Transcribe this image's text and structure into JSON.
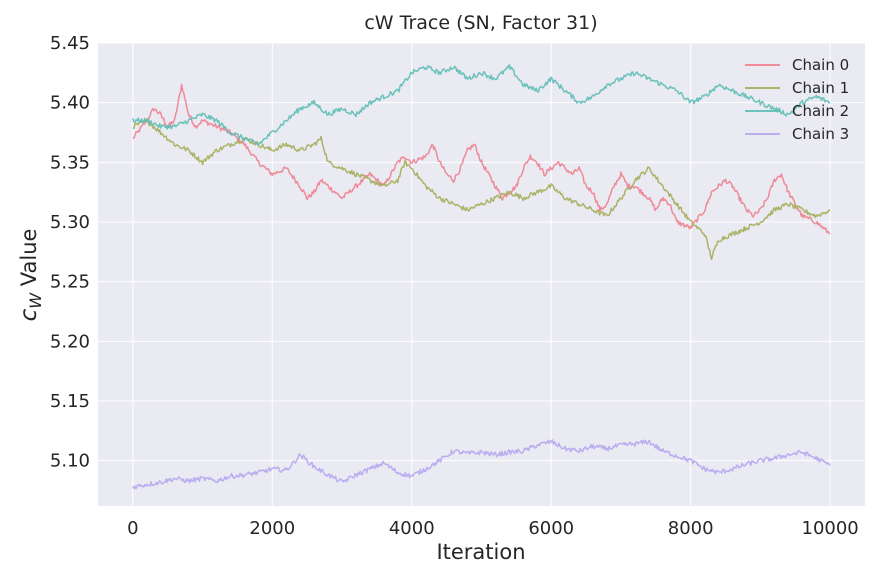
{
  "chart_data": {
    "type": "line",
    "title": "cW Trace (SN, Factor 31)",
    "xlabel": "Iteration",
    "ylabel_main": "c",
    "ylabel_sub": "W",
    "ylabel_rest": " Value",
    "xlim": [
      -500,
      10500
    ],
    "ylim": [
      5.062,
      5.45
    ],
    "xticks": [
      0,
      2000,
      4000,
      6000,
      8000,
      10000
    ],
    "xtick_labels": [
      "0",
      "2000",
      "4000",
      "6000",
      "8000",
      "10000"
    ],
    "yticks": [
      5.1,
      5.15,
      5.2,
      5.25,
      5.3,
      5.35,
      5.4,
      5.45
    ],
    "ytick_labels": [
      "5.10",
      "5.15",
      "5.20",
      "5.25",
      "5.30",
      "5.35",
      "5.40",
      "5.45"
    ],
    "grid": true,
    "legend_position": "top-right",
    "colors": {
      "plot_background": "#eaeaf2",
      "grid": "#ffffff",
      "text": "#262626"
    },
    "series": [
      {
        "name": "Chain 0",
        "color": "#f07f8f",
        "x": [
          0,
          200,
          300,
          400,
          500,
          600,
          700,
          800,
          900,
          1000,
          1200,
          1400,
          1600,
          1800,
          1900,
          2000,
          2200,
          2400,
          2500,
          2600,
          2700,
          2800,
          2900,
          3000,
          3200,
          3400,
          3600,
          3800,
          3900,
          4000,
          4200,
          4300,
          4400,
          4500,
          4600,
          4700,
          4800,
          4900,
          5000,
          5100,
          5200,
          5300,
          5400,
          5500,
          5600,
          5700,
          5800,
          5900,
          6000,
          6100,
          6200,
          6300,
          6400,
          6500,
          6600,
          6700,
          6800,
          6900,
          7000,
          7100,
          7200,
          7300,
          7400,
          7500,
          7600,
          7700,
          7800,
          8000,
          8200,
          8300,
          8400,
          8500,
          8600,
          8700,
          8800,
          8900,
          9000,
          9100,
          9200,
          9300,
          9400,
          9500,
          9600,
          9800,
          10000
        ],
        "y": [
          5.37,
          5.385,
          5.395,
          5.39,
          5.38,
          5.385,
          5.415,
          5.39,
          5.38,
          5.385,
          5.38,
          5.375,
          5.365,
          5.35,
          5.345,
          5.34,
          5.345,
          5.33,
          5.32,
          5.325,
          5.335,
          5.33,
          5.325,
          5.32,
          5.33,
          5.34,
          5.33,
          5.35,
          5.355,
          5.35,
          5.355,
          5.365,
          5.35,
          5.34,
          5.335,
          5.345,
          5.36,
          5.365,
          5.35,
          5.34,
          5.33,
          5.32,
          5.325,
          5.33,
          5.345,
          5.355,
          5.35,
          5.34,
          5.345,
          5.35,
          5.345,
          5.34,
          5.345,
          5.33,
          5.325,
          5.31,
          5.315,
          5.33,
          5.34,
          5.33,
          5.33,
          5.325,
          5.32,
          5.31,
          5.32,
          5.315,
          5.3,
          5.295,
          5.31,
          5.325,
          5.33,
          5.335,
          5.33,
          5.32,
          5.31,
          5.305,
          5.31,
          5.32,
          5.335,
          5.34,
          5.325,
          5.315,
          5.305,
          5.3,
          5.29
        ]
      },
      {
        "name": "Chain 1",
        "color": "#a5ad5a",
        "x": [
          0,
          200,
          400,
          600,
          800,
          1000,
          1200,
          1400,
          1600,
          1800,
          2000,
          2200,
          2400,
          2600,
          2700,
          2800,
          3000,
          3200,
          3400,
          3600,
          3800,
          3900,
          4000,
          4200,
          4400,
          4600,
          4800,
          5000,
          5200,
          5400,
          5600,
          5800,
          6000,
          6200,
          6400,
          6600,
          6800,
          7000,
          7200,
          7400,
          7600,
          7800,
          8000,
          8200,
          8300,
          8400,
          8600,
          8800,
          9000,
          9200,
          9400,
          9600,
          9800,
          10000
        ],
        "y": [
          5.38,
          5.385,
          5.375,
          5.365,
          5.36,
          5.35,
          5.36,
          5.365,
          5.37,
          5.365,
          5.36,
          5.365,
          5.36,
          5.365,
          5.37,
          5.35,
          5.345,
          5.34,
          5.335,
          5.33,
          5.335,
          5.35,
          5.345,
          5.33,
          5.32,
          5.315,
          5.31,
          5.315,
          5.32,
          5.325,
          5.32,
          5.325,
          5.33,
          5.32,
          5.315,
          5.31,
          5.305,
          5.32,
          5.335,
          5.345,
          5.33,
          5.315,
          5.3,
          5.29,
          5.27,
          5.285,
          5.29,
          5.295,
          5.3,
          5.31,
          5.315,
          5.31,
          5.305,
          5.31
        ]
      },
      {
        "name": "Chain 2",
        "color": "#5dbdb5",
        "x": [
          0,
          200,
          400,
          600,
          800,
          1000,
          1200,
          1400,
          1600,
          1800,
          2000,
          2200,
          2400,
          2600,
          2800,
          3000,
          3200,
          3400,
          3600,
          3800,
          4000,
          4200,
          4400,
          4600,
          4800,
          5000,
          5200,
          5400,
          5600,
          5800,
          6000,
          6200,
          6400,
          6600,
          6800,
          7000,
          7200,
          7400,
          7600,
          7800,
          8000,
          8200,
          8400,
          8600,
          8800,
          9000,
          9200,
          9400,
          9600,
          9800,
          10000
        ],
        "y": [
          5.385,
          5.385,
          5.38,
          5.38,
          5.385,
          5.39,
          5.385,
          5.375,
          5.37,
          5.365,
          5.375,
          5.385,
          5.395,
          5.4,
          5.39,
          5.395,
          5.39,
          5.4,
          5.405,
          5.41,
          5.425,
          5.43,
          5.425,
          5.43,
          5.42,
          5.425,
          5.42,
          5.43,
          5.415,
          5.41,
          5.42,
          5.41,
          5.4,
          5.405,
          5.415,
          5.42,
          5.425,
          5.42,
          5.415,
          5.41,
          5.4,
          5.405,
          5.415,
          5.41,
          5.405,
          5.4,
          5.395,
          5.39,
          5.4,
          5.405,
          5.4
        ]
      },
      {
        "name": "Chain 3",
        "color": "#b3a7ef",
        "x": [
          0,
          200,
          400,
          600,
          800,
          1000,
          1200,
          1400,
          1600,
          1800,
          2000,
          2200,
          2300,
          2400,
          2600,
          2800,
          3000,
          3200,
          3400,
          3600,
          3800,
          4000,
          4200,
          4400,
          4600,
          4800,
          5000,
          5200,
          5400,
          5600,
          5800,
          6000,
          6200,
          6400,
          6600,
          6800,
          7000,
          7200,
          7400,
          7600,
          7800,
          8000,
          8200,
          8400,
          8600,
          8800,
          9000,
          9200,
          9400,
          9600,
          9800,
          10000
        ],
        "y": [
          5.078,
          5.08,
          5.082,
          5.085,
          5.083,
          5.085,
          5.083,
          5.087,
          5.088,
          5.09,
          5.093,
          5.092,
          5.098,
          5.105,
          5.095,
          5.088,
          5.082,
          5.088,
          5.093,
          5.098,
          5.09,
          5.087,
          5.093,
          5.1,
          5.108,
          5.106,
          5.107,
          5.105,
          5.107,
          5.108,
          5.113,
          5.116,
          5.11,
          5.108,
          5.112,
          5.11,
          5.113,
          5.114,
          5.116,
          5.108,
          5.104,
          5.1,
          5.093,
          5.09,
          5.093,
          5.097,
          5.1,
          5.102,
          5.105,
          5.107,
          5.102,
          5.096
        ]
      }
    ]
  }
}
